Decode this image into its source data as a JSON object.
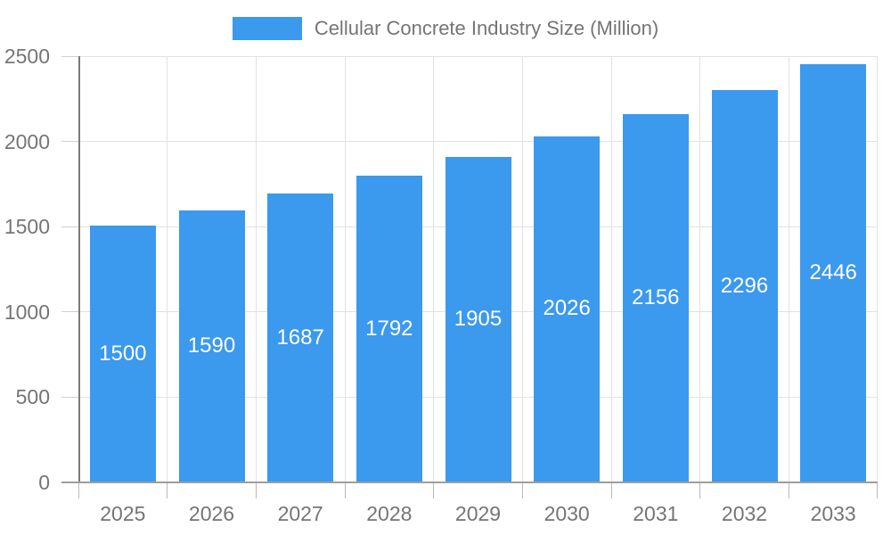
{
  "chart_data": {
    "type": "bar",
    "title": "Cellular Concrete Industry Size (Million)",
    "categories": [
      "2025",
      "2026",
      "2027",
      "2028",
      "2029",
      "2030",
      "2031",
      "2032",
      "2033"
    ],
    "values": [
      1500,
      1590,
      1687,
      1792,
      1905,
      2026,
      2156,
      2296,
      2446
    ],
    "xlabel": "",
    "ylabel": "",
    "ylim": [
      0,
      2500
    ],
    "ytick_step": 500,
    "grid": true,
    "legend_position": "top",
    "bar_color": "#3b99ee",
    "bar_label_color": "#ffffff",
    "axis_text_color": "#757575"
  }
}
